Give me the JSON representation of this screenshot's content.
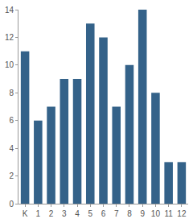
{
  "chart_data": {
    "type": "bar",
    "categories": [
      "K",
      "1",
      "2",
      "3",
      "4",
      "5",
      "6",
      "7",
      "8",
      "9",
      "10",
      "11",
      "12"
    ],
    "values": [
      11,
      6,
      7,
      9,
      9,
      13,
      12,
      7,
      10,
      14,
      8,
      3,
      3
    ],
    "color": "#346289",
    "ylim": [
      0,
      14
    ],
    "yticks": [
      0,
      2,
      4,
      6,
      8,
      10,
      12,
      14
    ],
    "grid": false
  }
}
